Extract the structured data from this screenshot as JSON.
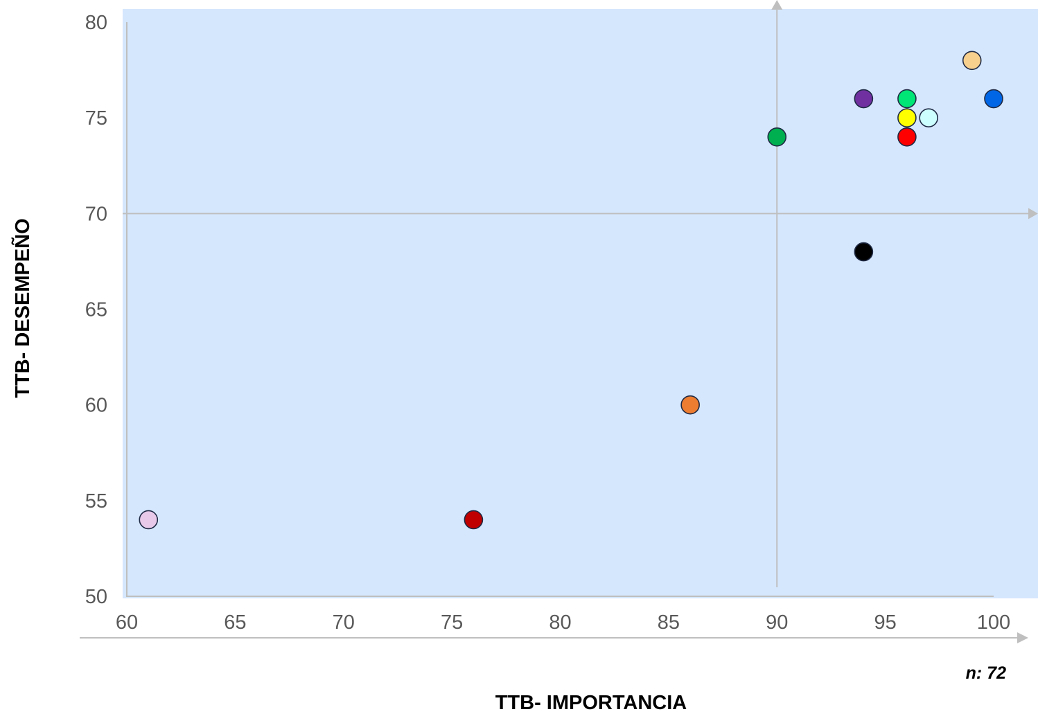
{
  "chart_data": {
    "type": "scatter",
    "title": "",
    "xlabel": "TTB-  IMPORTANCIA",
    "ylabel": "TTB- DESEMPEÑO",
    "note": "n: 72",
    "xlim": [
      60,
      100
    ],
    "ylim": [
      50,
      80
    ],
    "x_ticks": [
      "60",
      "65",
      "70",
      "75",
      "80",
      "85",
      "90",
      "95",
      "100"
    ],
    "y_ticks": [
      "50",
      "55",
      "60",
      "65",
      "70",
      "75",
      "80"
    ],
    "quadrant_lines": {
      "x": 90,
      "y": 70
    },
    "grid": false,
    "plot_background": "#d5e7fd",
    "points": [
      {
        "x": 61,
        "y": 54,
        "color": "#e8c9ea"
      },
      {
        "x": 76,
        "y": 54,
        "color": "#c00000"
      },
      {
        "x": 86,
        "y": 60,
        "color": "#ed7d31"
      },
      {
        "x": 90,
        "y": 74,
        "color": "#00b050"
      },
      {
        "x": 94,
        "y": 68,
        "color": "#000000"
      },
      {
        "x": 94,
        "y": 76,
        "color": "#7030a0"
      },
      {
        "x": 96,
        "y": 76,
        "color": "#00e676"
      },
      {
        "x": 96,
        "y": 75,
        "color": "#ffff00"
      },
      {
        "x": 96,
        "y": 74,
        "color": "#ff0000"
      },
      {
        "x": 97,
        "y": 75,
        "color": "#ccffff"
      },
      {
        "x": 99,
        "y": 78,
        "color": "#f8d08e"
      },
      {
        "x": 100,
        "y": 76,
        "color": "#0066e6"
      }
    ]
  }
}
